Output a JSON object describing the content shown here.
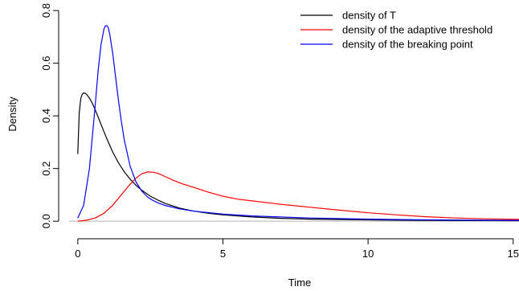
{
  "chart_data": {
    "type": "line",
    "xlabel": "Time",
    "ylabel": "Density",
    "xlim": [
      -0.3,
      15.2
    ],
    "ylim": [
      -0.03,
      0.84
    ],
    "xticks": [
      0,
      5,
      10,
      15
    ],
    "yticks": [
      0.0,
      0.2,
      0.4,
      0.6,
      0.8
    ],
    "xtick_labels": [
      "0",
      "5",
      "10",
      "15"
    ],
    "ytick_labels": [
      "0.0",
      "0.2",
      "0.4",
      "0.6",
      "0.8"
    ],
    "baseline": {
      "y": 0,
      "color": "#b3b3b3"
    },
    "legend": {
      "placement": "top-right",
      "frame": false
    },
    "grid": false,
    "series": [
      {
        "name": "density of T",
        "color": "#000000",
        "x": [
          0,
          0.05,
          0.1,
          0.15,
          0.2,
          0.25,
          0.3,
          0.4,
          0.5,
          0.6,
          0.7,
          0.8,
          0.9,
          1.0,
          1.2,
          1.4,
          1.6,
          1.8,
          2.0,
          2.2,
          2.5,
          2.8,
          3.0,
          3.5,
          4.0,
          4.5,
          5.0,
          6.0,
          7.0,
          8.0,
          10.0,
          12.0,
          15.2
        ],
        "y": [
          0.255,
          0.41,
          0.465,
          0.482,
          0.487,
          0.486,
          0.482,
          0.468,
          0.448,
          0.423,
          0.396,
          0.368,
          0.34,
          0.313,
          0.263,
          0.222,
          0.188,
          0.16,
          0.137,
          0.118,
          0.095,
          0.078,
          0.068,
          0.05,
          0.038,
          0.03,
          0.024,
          0.016,
          0.011,
          0.008,
          0.005,
          0.003,
          0.002
        ]
      },
      {
        "name": "density of the adaptive threshold",
        "color": "#ff0000",
        "x": [
          0,
          0.3,
          0.6,
          0.9,
          1.2,
          1.5,
          1.8,
          2.0,
          2.2,
          2.4,
          2.6,
          2.8,
          3.0,
          3.3,
          3.6,
          4.0,
          4.5,
          5.0,
          5.5,
          6.0,
          7.0,
          8.0,
          9.0,
          10.0,
          11.0,
          12.0,
          13.0,
          14.0,
          15.2
        ],
        "y": [
          0.0,
          0.004,
          0.012,
          0.03,
          0.06,
          0.1,
          0.14,
          0.163,
          0.18,
          0.187,
          0.186,
          0.18,
          0.17,
          0.155,
          0.142,
          0.128,
          0.11,
          0.095,
          0.084,
          0.077,
          0.064,
          0.053,
          0.042,
          0.032,
          0.024,
          0.017,
          0.012,
          0.009,
          0.007
        ]
      },
      {
        "name": "density of the breaking point",
        "color": "#0000ff",
        "x": [
          0,
          0.2,
          0.4,
          0.6,
          0.7,
          0.8,
          0.9,
          0.95,
          1.0,
          1.05,
          1.1,
          1.2,
          1.3,
          1.4,
          1.5,
          1.6,
          1.8,
          2.0,
          2.2,
          2.4,
          2.6,
          2.8,
          3.0,
          3.5,
          4.0,
          5.0,
          6.0,
          8.0,
          10.0,
          12.0,
          15.2
        ],
        "y": [
          0.012,
          0.06,
          0.2,
          0.44,
          0.57,
          0.67,
          0.73,
          0.742,
          0.743,
          0.735,
          0.71,
          0.64,
          0.55,
          0.46,
          0.38,
          0.31,
          0.21,
          0.15,
          0.115,
          0.092,
          0.078,
          0.068,
          0.06,
          0.047,
          0.038,
          0.027,
          0.02,
          0.012,
          0.008,
          0.005,
          0.003
        ]
      }
    ]
  }
}
